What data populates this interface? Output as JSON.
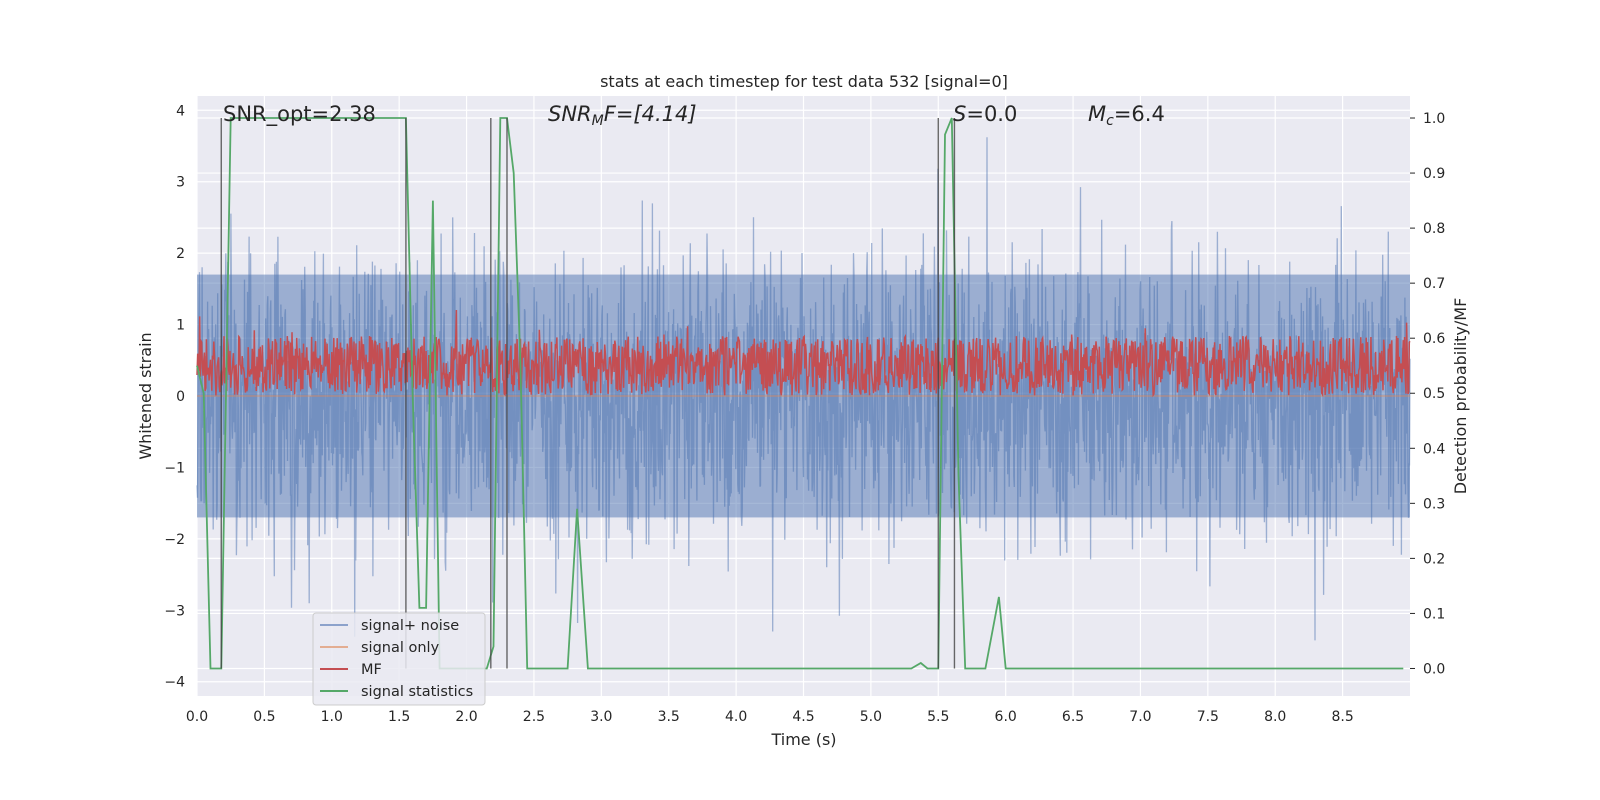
{
  "chart_data": {
    "type": "line",
    "title": "stats at each timestep for test data 532 [signal=0]",
    "xlabel": "Time (s)",
    "ylabel": "Whitened strain",
    "y2label": "Detection probability/MF",
    "xlim": [
      0.0,
      9.0
    ],
    "ylim": [
      -4.2,
      4.2
    ],
    "y2lim": [
      -0.05,
      1.04
    ],
    "x_ticks": [
      "0.0",
      "0.5",
      "1.0",
      "1.5",
      "2.0",
      "2.5",
      "3.0",
      "3.5",
      "4.0",
      "4.5",
      "5.0",
      "5.5",
      "6.0",
      "6.5",
      "7.0",
      "7.5",
      "8.0",
      "8.5"
    ],
    "y_ticks": [
      "4",
      "3",
      "2",
      "1",
      "0",
      "−1",
      "−2",
      "−3",
      "−4"
    ],
    "y2_ticks": [
      "1.0",
      "0.9",
      "0.8",
      "0.7",
      "0.6",
      "0.5",
      "0.4",
      "0.3",
      "0.2",
      "0.1",
      "0.0"
    ],
    "grid": true,
    "legend_position": "lower-left",
    "annotations": {
      "snr_opt": "SNR_opt=2.38",
      "snr_mf_sym": "SNR",
      "snr_mf_sub": "M",
      "snr_mf_rest": "F=[4.14]",
      "s_sym": "S",
      "s_rest": "=0.0",
      "mc_sym": "M",
      "mc_sub": "c",
      "mc_rest": "=6.4"
    },
    "legend": [
      {
        "name": "signal+ noise",
        "color": "#4c72b0"
      },
      {
        "name": "signal only",
        "color": "#dd8452"
      },
      {
        "name": "MF",
        "color": "#c44e52"
      },
      {
        "name": "signal statistics",
        "color": "#55a868"
      }
    ],
    "series": [
      {
        "name": "signal+ noise",
        "axis": "left",
        "color": "#4c72b0",
        "opacity": 0.5,
        "noise_sd": 1.0,
        "noise_band": [
          -1.7,
          1.7
        ],
        "x_range": [
          0.0,
          9.0
        ]
      },
      {
        "name": "signal only",
        "axis": "left",
        "color": "#dd8452",
        "values": [
          0
        ]
      },
      {
        "name": "MF",
        "axis": "right",
        "color": "#c44e52",
        "baseline": 0.55,
        "range": [
          0.5,
          0.62
        ]
      },
      {
        "name": "signal statistics",
        "axis": "right",
        "color": "#55a868",
        "points": [
          [
            0.0,
            0.55
          ],
          [
            0.05,
            0.5
          ],
          [
            0.1,
            0.0
          ],
          [
            0.18,
            0.0
          ],
          [
            0.25,
            1.0
          ],
          [
            1.55,
            1.0
          ],
          [
            1.6,
            0.5
          ],
          [
            1.65,
            0.11
          ],
          [
            1.7,
            0.11
          ],
          [
            1.75,
            0.85
          ],
          [
            1.8,
            0.0
          ],
          [
            2.15,
            0.0
          ],
          [
            2.2,
            0.04
          ],
          [
            2.25,
            1.0
          ],
          [
            2.3,
            1.0
          ],
          [
            2.35,
            0.9
          ],
          [
            2.4,
            0.55
          ],
          [
            2.45,
            0.0
          ],
          [
            2.75,
            0.0
          ],
          [
            2.82,
            0.29
          ],
          [
            2.9,
            0.0
          ],
          [
            5.3,
            0.0
          ],
          [
            5.37,
            0.01
          ],
          [
            5.42,
            0.0
          ],
          [
            5.5,
            0.0
          ],
          [
            5.55,
            0.97
          ],
          [
            5.6,
            1.0
          ],
          [
            5.65,
            0.35
          ],
          [
            5.7,
            0.0
          ],
          [
            5.75,
            0.0
          ],
          [
            5.85,
            0.0
          ],
          [
            5.95,
            0.13
          ],
          [
            6.0,
            0.0
          ],
          [
            8.95,
            0.0
          ]
        ]
      }
    ],
    "vertical_markers": [
      0.18,
      1.55,
      2.18,
      2.3,
      5.5,
      5.62
    ]
  }
}
